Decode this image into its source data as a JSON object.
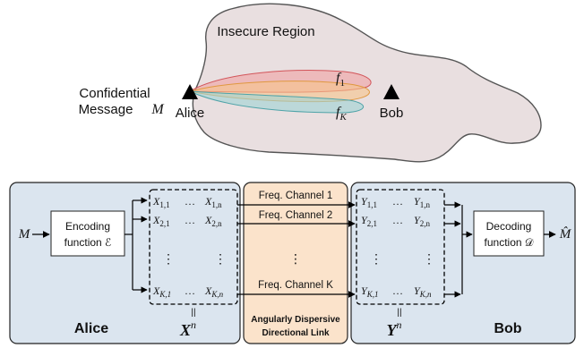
{
  "top": {
    "region_label": "Insecure Region",
    "message_line1": "Confidential",
    "message_line2": "Message",
    "message_symbol": "M",
    "alice_label": "Alice",
    "bob_label": "Bob",
    "f1": "f",
    "f1_sub": "1",
    "fK": "f",
    "fK_sub": "K"
  },
  "bottom": {
    "input_symbol": "M",
    "encoder_line1": "Encoding",
    "encoder_line2": "function ℰ",
    "decoder_line1": "Decoding",
    "decoder_line2": "function 𝒟",
    "output_symbol": "M̂",
    "alice_label": "Alice",
    "bob_label": "Bob",
    "x_matrix": {
      "var": "X",
      "rows": [
        [
          "1,1",
          "1,n"
        ],
        [
          "2,1",
          "2,n"
        ],
        [
          "K,1",
          "K,n"
        ]
      ],
      "label": "X",
      "label_sup": "n"
    },
    "y_matrix": {
      "var": "Y",
      "rows": [
        [
          "1,1",
          "1,n"
        ],
        [
          "2,1",
          "2,n"
        ],
        [
          "K,1",
          "K,n"
        ]
      ],
      "label": "Y",
      "label_sup": "n"
    },
    "channels": [
      "Freq. Channel 1",
      "Freq. Channel 2",
      "Freq. Channel K"
    ],
    "link_line1": "Angularly Dispersive",
    "link_line2": "Directional Link",
    "equals": "||",
    "dots": "…",
    "vdots": "⋮"
  },
  "colors": {
    "region_fill": "#e9dfe0",
    "panel_blue": "#dbe5ef",
    "panel_orange": "#fbe3cb",
    "lobe_red": "#f19a9c",
    "lobe_orange": "#f6c48a",
    "lobe_teal": "#9fd3d3"
  }
}
